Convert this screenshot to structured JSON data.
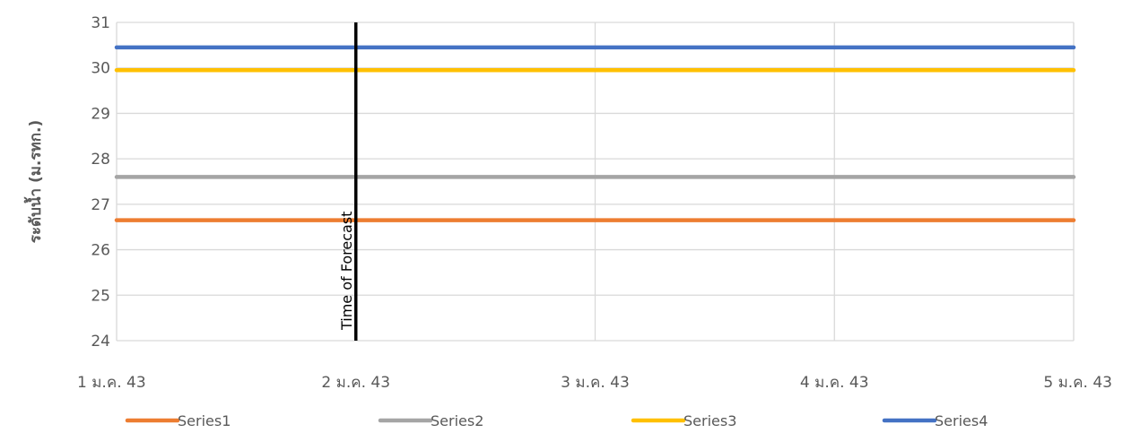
{
  "chart_data": {
    "type": "line",
    "ylabel": "ระดับน้ำ (ม.รทก.)",
    "xlabel": "",
    "x": [
      "1 ม.ค. 43",
      "2 ม.ค. 43",
      "3 ม.ค. 43",
      "4 ม.ค. 43",
      "5 ม.ค. 43"
    ],
    "ylim": [
      24,
      31
    ],
    "yticks": [
      24,
      25,
      26,
      27,
      28,
      29,
      30,
      31
    ],
    "grid": true,
    "legend_position": "bottom",
    "series": [
      {
        "name": "Series1",
        "color": "#ED7D31",
        "values": [
          26.65,
          26.65,
          26.65,
          26.65,
          26.65
        ]
      },
      {
        "name": "Series2",
        "color": "#A5A5A5",
        "values": [
          27.6,
          27.6,
          27.6,
          27.6,
          27.6
        ]
      },
      {
        "name": "Series3",
        "color": "#FFC000",
        "values": [
          29.95,
          29.95,
          29.95,
          29.95,
          29.95
        ]
      },
      {
        "name": "Series4",
        "color": "#4472C4",
        "values": [
          30.45,
          30.45,
          30.45,
          30.45,
          30.45
        ]
      }
    ],
    "annotations": [
      {
        "text": "Time of Forecast",
        "x": "2 ม.ค. 43",
        "color": "#000000"
      }
    ]
  }
}
